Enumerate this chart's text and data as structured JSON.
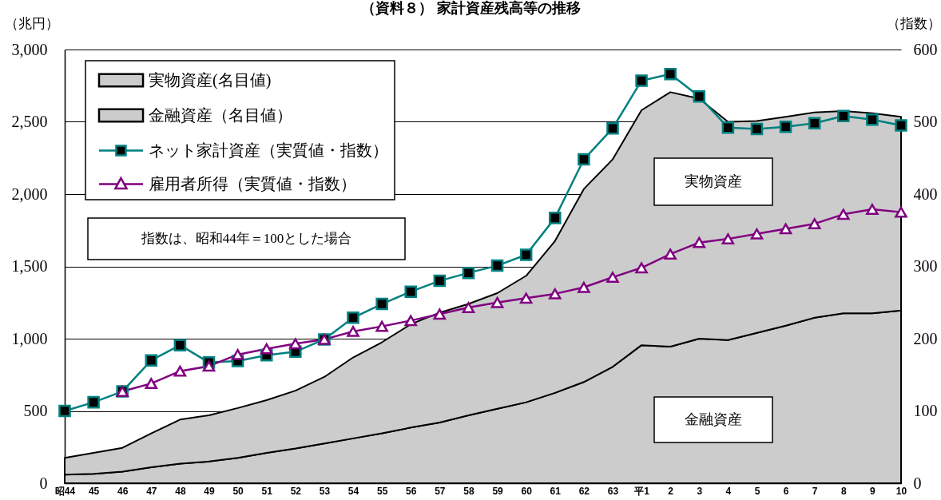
{
  "chart_data": {
    "type": "area",
    "title": "（資料８） 家計資産残高等の推移",
    "ylabel": "（兆円）",
    "y2label": "（指数）",
    "categories": [
      "昭44",
      "45",
      "46",
      "47",
      "48",
      "49",
      "50",
      "51",
      "52",
      "53",
      "54",
      "55",
      "56",
      "57",
      "58",
      "59",
      "60",
      "61",
      "62",
      "63",
      "平1",
      "2",
      "3",
      "4",
      "5",
      "6",
      "7",
      "8",
      "9",
      "10"
    ],
    "stacked": true,
    "series": [
      {
        "name": "金融資産（名目値）",
        "color": "#cccccc",
        "values": [
          60,
          65,
          80,
          110,
          135,
          150,
          175,
          210,
          240,
          275,
          310,
          345,
          385,
          420,
          470,
          515,
          560,
          625,
          700,
          805,
          955,
          945,
          1000,
          990,
          1040,
          1090,
          1145,
          1175,
          1175,
          1195
        ]
      },
      {
        "name": "実物資産(名目値)",
        "color": "#cccccc",
        "values": [
          115,
          145,
          165,
          235,
          305,
          320,
          345,
          365,
          400,
          460,
          560,
          630,
          715,
          760,
          770,
          800,
          875,
          1050,
          1335,
          1435,
          1625,
          1760,
          1660,
          1510,
          1465,
          1445,
          1420,
          1400,
          1385,
          1340
        ]
      },
      {
        "name": "ネット家計資産（実質値・指数）",
        "type": "line",
        "axis": "y2",
        "marker": "square",
        "color": "#008080",
        "values": [
          100,
          112,
          127,
          170,
          191,
          167,
          169,
          177,
          182,
          199,
          229,
          248,
          265,
          280,
          291,
          301,
          316,
          367,
          448,
          491,
          557,
          566,
          535,
          492,
          490,
          493,
          498,
          508,
          503,
          495
        ]
      },
      {
        "name": "雇用者所得（実質値・指数）",
        "type": "line",
        "axis": "y2",
        "marker": "triangle",
        "color": "#800080",
        "values": [
          null,
          null,
          127,
          138,
          155,
          162,
          178,
          186,
          193,
          199,
          210,
          217,
          225,
          234,
          243,
          250,
          256,
          262,
          271,
          285,
          298,
          317,
          333,
          338,
          345,
          352,
          359,
          372,
          379,
          375
        ]
      }
    ],
    "ylim": [
      0,
      3000
    ],
    "yticks": [
      0,
      500,
      {
        "value": 1000,
        "label": "1,000"
      },
      {
        "value": 1500,
        "label": "1,500"
      },
      {
        "value": 2000,
        "label": "2,000"
      },
      {
        "value": 2500,
        "label": "2,500"
      },
      {
        "value": 3000,
        "label": "3,000"
      }
    ],
    "y2lim": [
      0,
      600
    ],
    "y2ticks": [
      0,
      100,
      200,
      300,
      400,
      500,
      600
    ],
    "grid": "y",
    "legend": "top left",
    "line_style": "solid",
    "annotations": [
      "実物資産",
      "金融資産",
      "指数は、昭和44年＝100とした場合"
    ]
  }
}
